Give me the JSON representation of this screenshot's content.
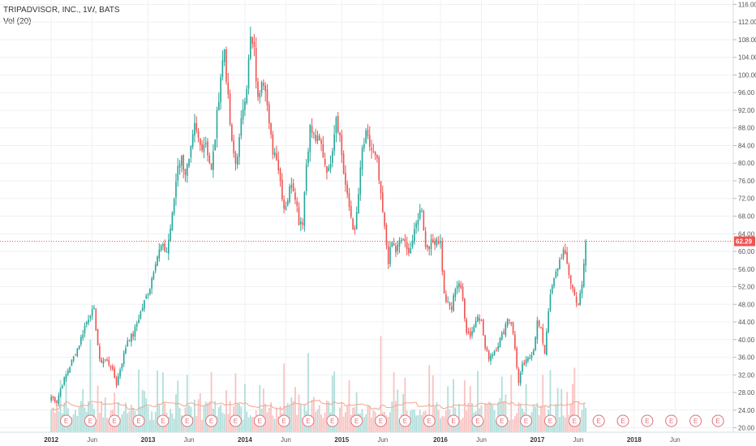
{
  "legend": {
    "symbol_line": "TRIPADVISOR, INC., 1W, BATS",
    "volume_line": "Vol (20)"
  },
  "colors": {
    "up": "#26a69a",
    "down": "#ef5350",
    "up_volume": "#b2dfdb",
    "down_volume": "#f8c4c3",
    "volume_ma": "#f4a490",
    "price_line": "#ef5350",
    "grid": "#eef1f4",
    "earnings_badge": "#e0707a"
  },
  "chart_data": {
    "type": "candlestick",
    "symbol": "TRIPADVISOR, INC.",
    "interval": "1W",
    "exchange": "BATS",
    "grid": true,
    "y_axis": {
      "position": "right",
      "ticks": [
        "20.00",
        "24.00",
        "28.00",
        "32.00",
        "36.00",
        "40.00",
        "44.00",
        "48.00",
        "52.00",
        "56.00",
        "60.00",
        "64.00",
        "68.00",
        "72.00",
        "76.00",
        "80.00",
        "84.00",
        "88.00",
        "92.00",
        "96.00",
        "100.00",
        "104.00",
        "108.00",
        "112.00",
        "116.00"
      ],
      "range": [
        19.0,
        117.0
      ]
    },
    "x_axis": {
      "labels": [
        "2012",
        "Jun",
        "2013",
        "Jun",
        "2014",
        "Jun",
        "2015",
        "Jun",
        "2016",
        "Jun",
        "2017",
        "Jun",
        "2018",
        "Jun"
      ],
      "year_labels": [
        "2012",
        "2013",
        "2014",
        "2015",
        "2016",
        "2017",
        "2018"
      ],
      "label_weeks": [
        0,
        22,
        52,
        74,
        104,
        126,
        156,
        178,
        209,
        231,
        261,
        283,
        313,
        335
      ],
      "total_weeks": 365
    },
    "last_price": 62.29,
    "last_price_label": "62.29",
    "earnings_marker": "E",
    "earnings_weeks": [
      8,
      21,
      34,
      47,
      60,
      73,
      86,
      99,
      112,
      125,
      138,
      151,
      164,
      177,
      190,
      203,
      216,
      229,
      242,
      255,
      268,
      281,
      294,
      307,
      320,
      333,
      346,
      358
    ],
    "price_anchors": [
      [
        0,
        27.0
      ],
      [
        3,
        26.0
      ],
      [
        6,
        30.0
      ],
      [
        9,
        33.0
      ],
      [
        12,
        36.0
      ],
      [
        15,
        39.0
      ],
      [
        18,
        43.0
      ],
      [
        21,
        46.0
      ],
      [
        23,
        46.5
      ],
      [
        26,
        35.0
      ],
      [
        29,
        35.5
      ],
      [
        32,
        34.0
      ],
      [
        35,
        30.0
      ],
      [
        38,
        35.0
      ],
      [
        41,
        40.0
      ],
      [
        44,
        41.0
      ],
      [
        47,
        45.0
      ],
      [
        50,
        48.5
      ],
      [
        53,
        52.0
      ],
      [
        56,
        58.0
      ],
      [
        59,
        61.0
      ],
      [
        62,
        60.0
      ],
      [
        65,
        68.0
      ],
      [
        68,
        80.0
      ],
      [
        70,
        81.0
      ],
      [
        72,
        78.0
      ],
      [
        74,
        80.0
      ],
      [
        77,
        88.0
      ],
      [
        80,
        84.0
      ],
      [
        83,
        85.0
      ],
      [
        86,
        78.0
      ],
      [
        88,
        86.0
      ],
      [
        91,
        100.0
      ],
      [
        93,
        106.0
      ],
      [
        95,
        94.0
      ],
      [
        97,
        84.0
      ],
      [
        99,
        80.0
      ],
      [
        101,
        85.0
      ],
      [
        103,
        93.0
      ],
      [
        105,
        98.0
      ],
      [
        107,
        108.0
      ],
      [
        109,
        105.0
      ],
      [
        111,
        94.0
      ],
      [
        113,
        100.0
      ],
      [
        115,
        98.0
      ],
      [
        117,
        88.0
      ],
      [
        119,
        83.0
      ],
      [
        121,
        82.0
      ],
      [
        123,
        76.0
      ],
      [
        125,
        70.0
      ],
      [
        127,
        72.0
      ],
      [
        129,
        76.0
      ],
      [
        131,
        73.0
      ],
      [
        133,
        67.0
      ],
      [
        135,
        67.0
      ],
      [
        137,
        80.0
      ],
      [
        139,
        88.0
      ],
      [
        141,
        86.0
      ],
      [
        143,
        85.0
      ],
      [
        145,
        84.0
      ],
      [
        147,
        80.0
      ],
      [
        149,
        78.0
      ],
      [
        151,
        84.0
      ],
      [
        153,
        91.0
      ],
      [
        155,
        86.0
      ],
      [
        157,
        78.0
      ],
      [
        159,
        72.0
      ],
      [
        161,
        68.0
      ],
      [
        163,
        64.0
      ],
      [
        165,
        73.0
      ],
      [
        167,
        83.0
      ],
      [
        169,
        86.0
      ],
      [
        171,
        84.0
      ],
      [
        173,
        82.0
      ],
      [
        175,
        80.0
      ],
      [
        177,
        72.0
      ],
      [
        179,
        65.0
      ],
      [
        181,
        58.0
      ],
      [
        183,
        62.0
      ],
      [
        185,
        60.0
      ],
      [
        187,
        62.0
      ],
      [
        189,
        63.0
      ],
      [
        191,
        60.0
      ],
      [
        193,
        61.0
      ],
      [
        195,
        64.0
      ],
      [
        197,
        68.0
      ],
      [
        199,
        70.0
      ],
      [
        201,
        61.0
      ],
      [
        203,
        61.5
      ],
      [
        205,
        62.0
      ],
      [
        207,
        63.0
      ],
      [
        209,
        62.0
      ],
      [
        211,
        50.0
      ],
      [
        213,
        48.0
      ],
      [
        215,
        47.0
      ],
      [
        217,
        52.0
      ],
      [
        219,
        53.0
      ],
      [
        221,
        49.0
      ],
      [
        223,
        42.0
      ],
      [
        225,
        41.0
      ],
      [
        227,
        43.0
      ],
      [
        229,
        46.0
      ],
      [
        231,
        44.0
      ],
      [
        233,
        38.0
      ],
      [
        235,
        36.0
      ],
      [
        237,
        37.0
      ],
      [
        239,
        38.0
      ],
      [
        241,
        40.0
      ],
      [
        243,
        42.0
      ],
      [
        245,
        45.0
      ],
      [
        247,
        44.0
      ],
      [
        249,
        38.0
      ],
      [
        251,
        30.0
      ],
      [
        253,
        34.0
      ],
      [
        255,
        35.0
      ],
      [
        257,
        36.0
      ],
      [
        259,
        38.0
      ],
      [
        261,
        44.0
      ],
      [
        263,
        42.0
      ],
      [
        265,
        37.0
      ],
      [
        267,
        47.0
      ],
      [
        269,
        52.0
      ],
      [
        271,
        55.0
      ],
      [
        273,
        58.0
      ],
      [
        275,
        60.0
      ],
      [
        277,
        57.0
      ],
      [
        279,
        53.0
      ],
      [
        281,
        50.0
      ],
      [
        283,
        48.0
      ],
      [
        285,
        52.0
      ],
      [
        287,
        62.29
      ]
    ],
    "volume_range": [
      0,
      95
    ]
  }
}
